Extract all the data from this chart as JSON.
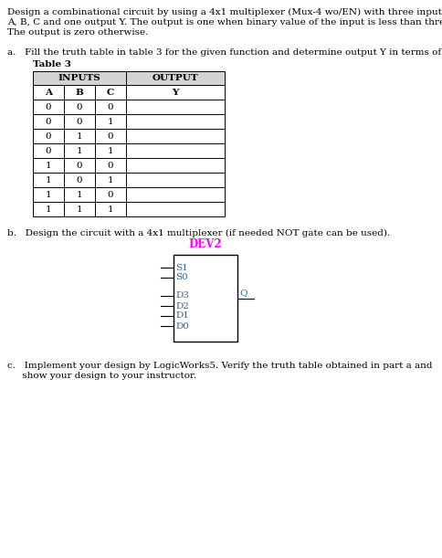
{
  "title_line1": "Design a combinational circuit by using a 4x1 multiplexer (Mux-4 wo/EN) with three inputs",
  "title_line2": "A, B, C and one output Y. The output is one when binary value of the input is less than three.",
  "title_line3": "The output is zero otherwise.",
  "part_a_text": "a.   Fill the truth table in table 3 for the given function and determine output Y in terms of C.",
  "table_title": "Table 3",
  "sub_headers": [
    "A",
    "B",
    "C",
    "Y"
  ],
  "rows": [
    [
      0,
      0,
      0,
      ""
    ],
    [
      0,
      0,
      1,
      ""
    ],
    [
      0,
      1,
      0,
      ""
    ],
    [
      0,
      1,
      1,
      ""
    ],
    [
      1,
      0,
      0,
      ""
    ],
    [
      1,
      0,
      1,
      ""
    ],
    [
      1,
      1,
      0,
      ""
    ],
    [
      1,
      1,
      1,
      ""
    ]
  ],
  "part_b_text": "b.   Design the circuit with a 4x1 multiplexer (if needed NOT gate can be used).",
  "dev2_label": "DEV2",
  "dev2_color": "#ff00ff",
  "mux_pins_left": [
    "S1",
    "S0",
    "D3",
    "D2",
    "D1",
    "D0"
  ],
  "mux_output": "Q",
  "part_c_line1": "c.   Implement your design by LogicWorks5. Verify the truth table obtained in part a and",
  "part_c_line2": "     show your design to your instructor.",
  "bg_color": "#ffffff",
  "text_color": "#000000",
  "table_header_bg": "#d3d3d3",
  "font_size_body": 7.5,
  "font_size_table": 7.5,
  "font_size_mux": 7.5,
  "font_size_dev2": 8.5,
  "mux_pin_color": "#336699"
}
